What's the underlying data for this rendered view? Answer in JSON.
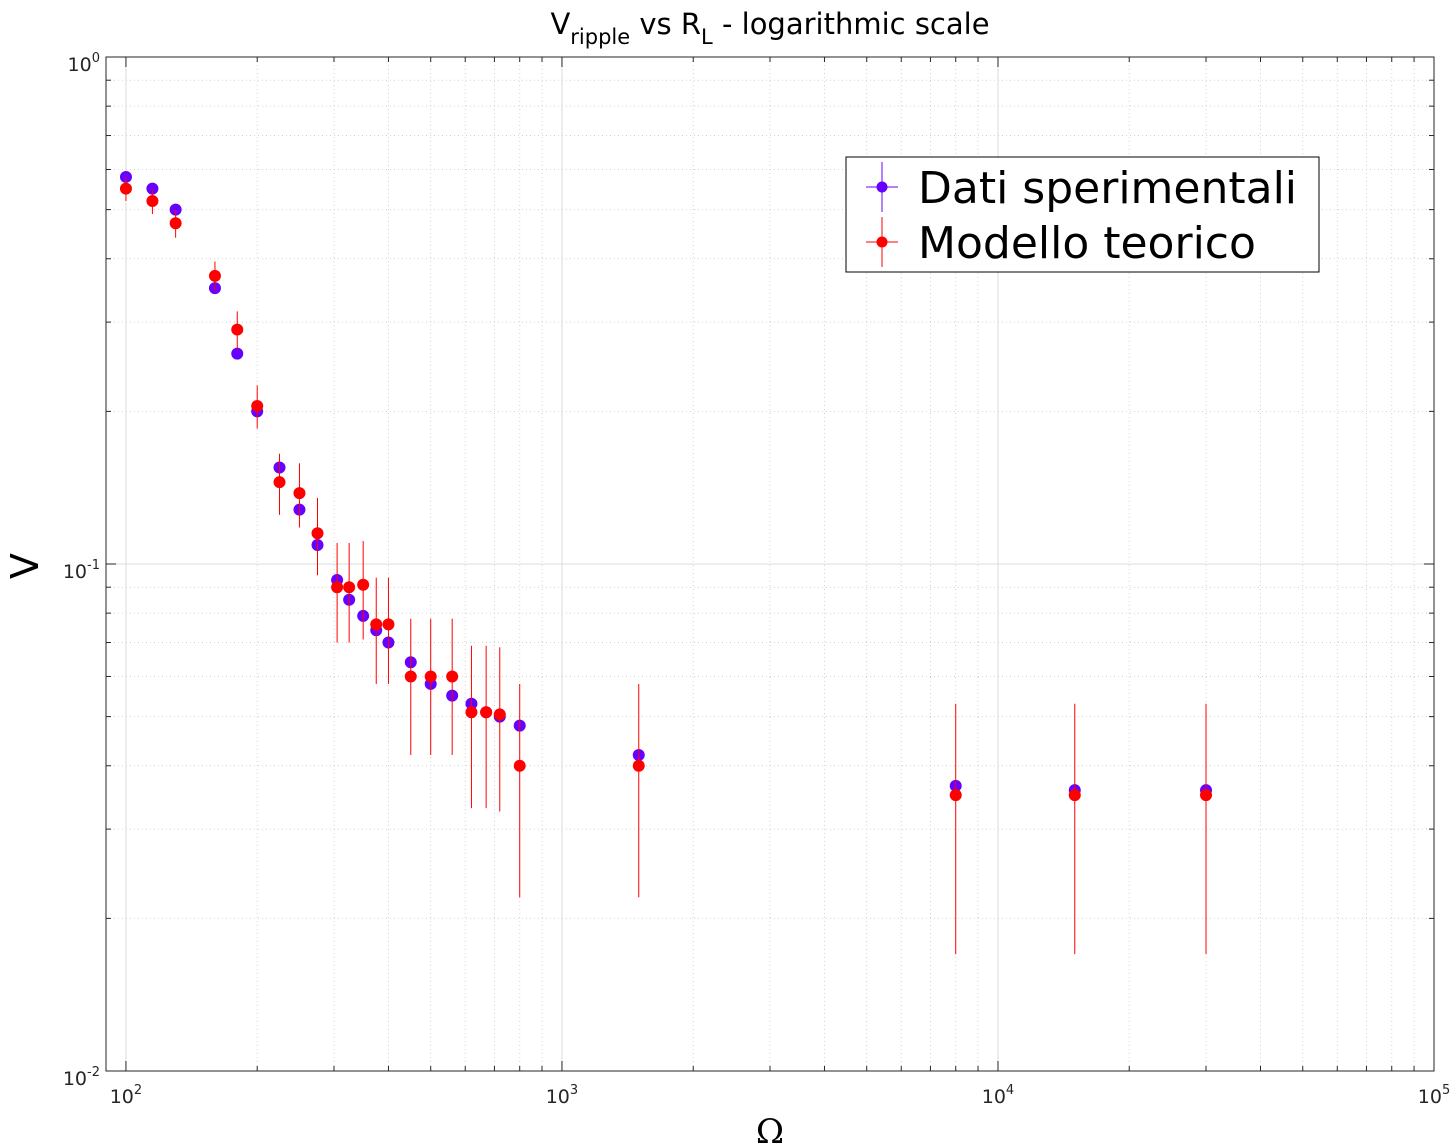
{
  "chart_data": {
    "type": "scatter",
    "title": {
      "main_1": "V",
      "sub_1": "ripple",
      "main_2": " vs R",
      "sub_2": "L",
      "main_3": " - logarithmic scale"
    },
    "xlabel": "Ω",
    "ylabel": "V",
    "x_scale": "log",
    "y_scale": "log",
    "xlim": [
      90,
      100000
    ],
    "ylim": [
      0.01,
      1
    ],
    "grid": true,
    "minor_grid": true,
    "legend_position": "top-right",
    "x_ticks": [
      {
        "base": "10",
        "exp": "2",
        "value": 100
      },
      {
        "base": "10",
        "exp": "3",
        "value": 1000
      },
      {
        "base": "10",
        "exp": "4",
        "value": 10000
      },
      {
        "base": "10",
        "exp": "5",
        "value": 100000
      }
    ],
    "y_ticks": [
      {
        "base": "10",
        "exp": "-2",
        "value": 0.01
      },
      {
        "base": "10",
        "exp": "-1",
        "value": 0.1
      },
      {
        "base": "10",
        "exp": "0",
        "value": 1
      }
    ],
    "series": [
      {
        "name": "Dati sperimentali",
        "color": "#6600ff",
        "x": [
          100,
          115,
          130,
          160,
          180,
          200,
          225,
          250,
          275,
          305,
          325,
          350,
          375,
          400,
          450,
          500,
          560,
          620,
          670,
          720,
          800,
          1500,
          8000,
          15000,
          30000
        ],
        "y": [
          0.58,
          0.55,
          0.5,
          0.35,
          0.26,
          0.2,
          0.155,
          0.128,
          0.109,
          0.093,
          0.085,
          0.079,
          0.074,
          0.07,
          0.064,
          0.058,
          0.055,
          0.053,
          0.051,
          0.05,
          0.048,
          0.042,
          0.0365,
          0.0358,
          0.0358
        ],
        "yerr": [
          0.004,
          0.004,
          0.004,
          0.003,
          0.003,
          0.002,
          0.002,
          0.001,
          0.001,
          0.001,
          0.001,
          0.001,
          0.001,
          0.001,
          0.001,
          0.001,
          0.001,
          0.001,
          0.001,
          0.001,
          0.001,
          0.001,
          0.0005,
          0.0005,
          0.0005
        ]
      },
      {
        "name": "Modello teorico",
        "color": "#ff0000",
        "x": [
          100,
          115,
          130,
          160,
          180,
          200,
          225,
          250,
          275,
          305,
          325,
          350,
          375,
          400,
          450,
          500,
          560,
          620,
          670,
          720,
          800,
          1500,
          8000,
          15000,
          30000
        ],
        "y": [
          0.55,
          0.52,
          0.47,
          0.37,
          0.29,
          0.205,
          0.145,
          0.138,
          0.115,
          0.09,
          0.09,
          0.091,
          0.076,
          0.076,
          0.06,
          0.06,
          0.06,
          0.051,
          0.051,
          0.0505,
          0.04,
          0.04,
          0.035,
          0.035,
          0.035
        ],
        "yerr": [
          0.03,
          0.03,
          0.03,
          0.025,
          0.025,
          0.02,
          0.02,
          0.02,
          0.02,
          0.02,
          0.02,
          0.02,
          0.018,
          0.018,
          0.018,
          0.018,
          0.018,
          0.018,
          0.018,
          0.018,
          0.018,
          0.018,
          0.018,
          0.018,
          0.018
        ]
      }
    ]
  }
}
